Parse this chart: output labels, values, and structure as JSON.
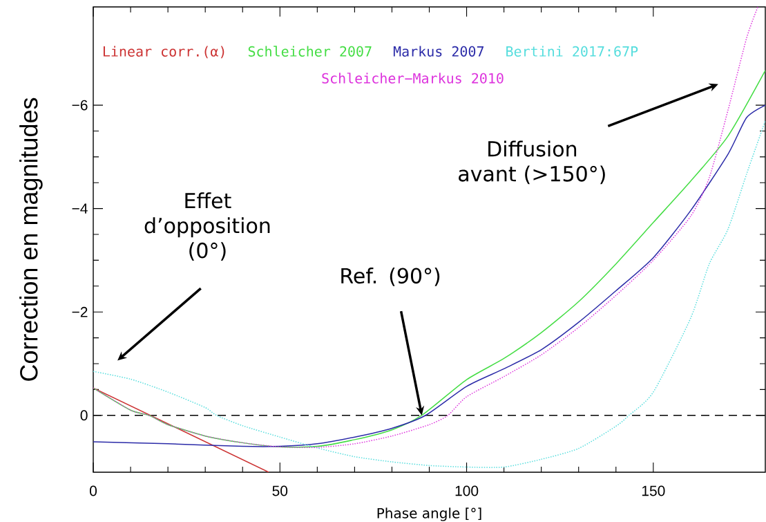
{
  "chart_data": {
    "type": "line",
    "xlabel": "Phase angle [°]",
    "ylabel": "Correction en magnitudes",
    "xlim": [
      0,
      180
    ],
    "ylim": [
      1.1,
      -7.9
    ],
    "xticks": [
      0,
      50,
      100,
      150
    ],
    "yticks": [
      {
        "value": -6,
        "label": "−6"
      },
      {
        "value": -4,
        "label": "−4"
      },
      {
        "value": -2,
        "label": "−2"
      },
      {
        "value": 0,
        "label": "0"
      }
    ],
    "legend": "top",
    "grid": false,
    "series": [
      {
        "name": "Linear corr.(α)",
        "color": "#cc3333",
        "line_style": "solid",
        "x": [
          0,
          47
        ],
        "values": [
          -0.53,
          1.1
        ]
      },
      {
        "name": "Schleicher 2007",
        "color": "#44dd44",
        "line_style": "solid",
        "x": [
          0,
          10,
          15,
          20,
          30,
          40,
          50,
          60,
          70,
          80,
          88,
          100,
          110,
          120,
          130,
          140,
          150,
          160,
          170,
          180
        ],
        "values": [
          -0.53,
          -0.1,
          0,
          0.18,
          0.4,
          0.53,
          0.61,
          0.6,
          0.47,
          0.28,
          0,
          -0.69,
          -1.1,
          -1.6,
          -2.2,
          -2.93,
          -3.73,
          -4.53,
          -5.4,
          -6.67
        ]
      },
      {
        "name": "Markus 2007",
        "color": "#2b2ba8",
        "line_style": "solid",
        "x": [
          0,
          20,
          40,
          50,
          60,
          70,
          80,
          89,
          100,
          110,
          120,
          130,
          140,
          150,
          160,
          170,
          175,
          180
        ],
        "values": [
          0.51,
          0.55,
          0.6,
          0.6,
          0.55,
          0.42,
          0.25,
          0,
          -0.56,
          -0.9,
          -1.27,
          -1.8,
          -2.41,
          -3.05,
          -3.96,
          -5.05,
          -5.76,
          -6.0
        ]
      },
      {
        "name": "Bertini 2017:67P",
        "color": "#55dddd",
        "line_style": "dotted",
        "x": [
          0,
          10,
          20,
          30,
          33,
          40,
          50,
          60,
          70,
          80,
          90,
          100,
          110,
          120,
          130,
          140,
          143.5,
          150,
          160,
          165,
          170,
          175,
          180
        ],
        "values": [
          -0.85,
          -0.7,
          -0.45,
          -0.15,
          0,
          0.2,
          0.42,
          0.63,
          0.8,
          0.9,
          0.97,
          1.0,
          1.0,
          0.85,
          0.64,
          0.21,
          0,
          -0.45,
          -1.88,
          -2.93,
          -3.6,
          -4.67,
          -5.7
        ]
      },
      {
        "name": "Schleicher−Markus 2010",
        "color": "#dd33dd",
        "line_style": "dotted",
        "x": [
          0,
          10,
          15,
          20,
          30,
          40,
          50,
          60,
          70,
          80,
          90,
          95,
          100,
          110,
          120,
          130,
          140,
          150,
          160,
          165,
          170,
          175,
          178
        ],
        "values": [
          -0.53,
          -0.1,
          0,
          0.18,
          0.4,
          0.53,
          0.61,
          0.62,
          0.55,
          0.4,
          0.18,
          0,
          -0.36,
          -0.75,
          -1.17,
          -1.7,
          -2.32,
          -3.0,
          -3.85,
          -4.6,
          -5.9,
          -7.3,
          -7.9
        ]
      }
    ],
    "ref_lines": [
      {
        "axis": "y",
        "value": 0,
        "color": "#000000",
        "line_style": "dashed"
      }
    ],
    "annotations": [
      "Effet d’opposition (0°)",
      {
        "text": "Ref. (90°)",
        "x": 88,
        "y": 0
      },
      "Diffusion avant (>150°)"
    ]
  }
}
